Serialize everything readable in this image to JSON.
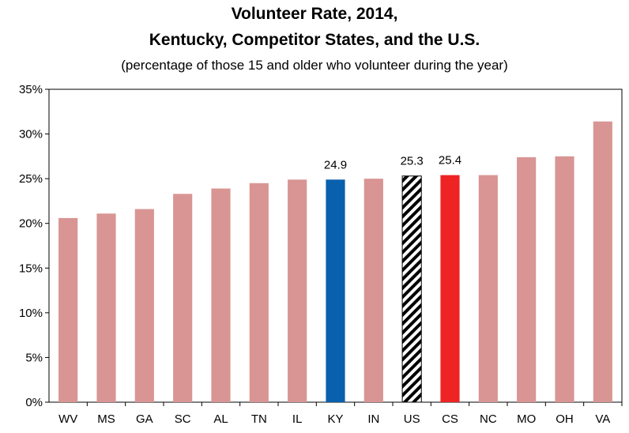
{
  "chart_data": {
    "type": "bar",
    "title_line1": "Volunteer Rate, 2014,",
    "title_line2": "Kentucky, Competitor States, and the U.S.",
    "subtitle": "(percentage of those 15 and older who volunteer during the year)",
    "xlabel": "",
    "ylabel": "",
    "ylim": [
      0,
      35
    ],
    "yticks": [
      "0%",
      "5%",
      "10%",
      "15%",
      "20%",
      "25%",
      "30%",
      "35%"
    ],
    "categories": [
      "WV",
      "MS",
      "GA",
      "SC",
      "AL",
      "TN",
      "IL",
      "KY",
      "IN",
      "US",
      "CS",
      "NC",
      "MO",
      "OH",
      "VA"
    ],
    "values": [
      20.6,
      21.1,
      21.6,
      23.3,
      23.9,
      24.5,
      24.9,
      24.9,
      25.0,
      25.3,
      25.4,
      25.4,
      27.4,
      27.5,
      31.4
    ],
    "data_labels": {
      "KY": "24.9",
      "US": "25.3",
      "CS": "25.4"
    },
    "colors": {
      "default": "#d89594",
      "KY": "#0960ad",
      "US": "hatch",
      "CS": "#ee2424"
    },
    "grid": false,
    "legend": "none"
  }
}
